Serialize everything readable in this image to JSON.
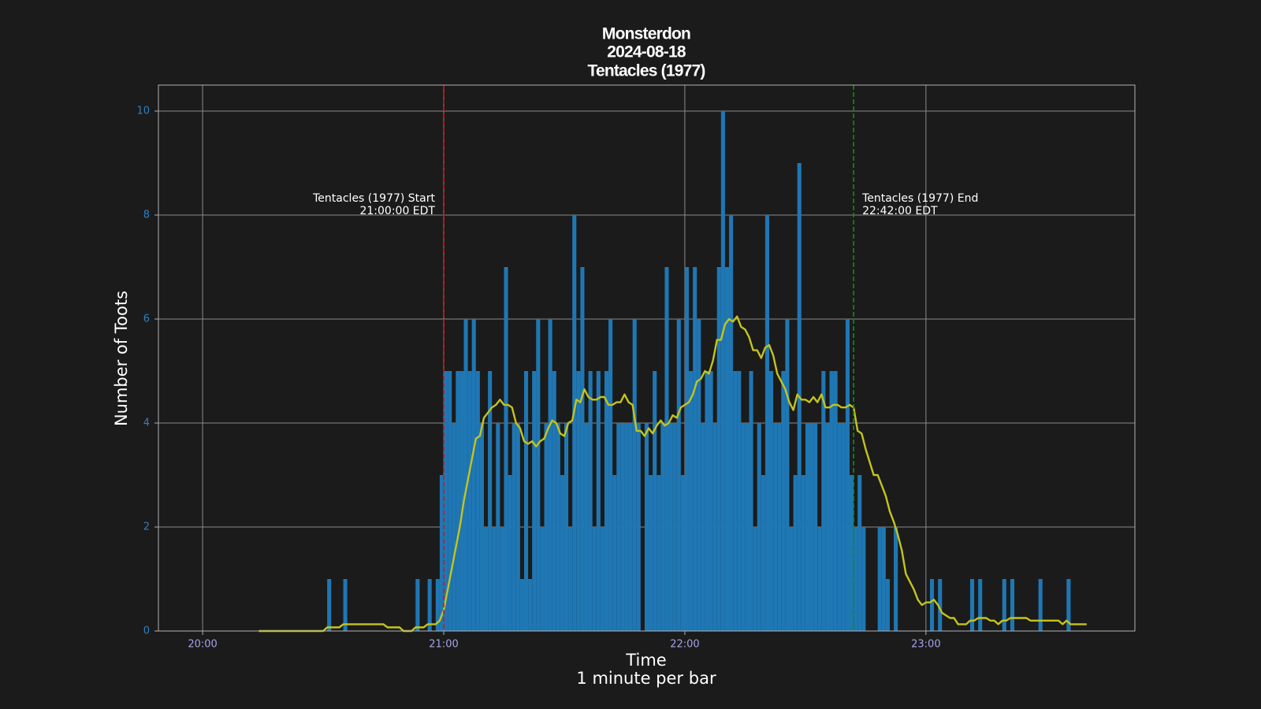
{
  "chart_data": {
    "type": "bar",
    "title": [
      "Monsterdon",
      "2024-08-18",
      "Tentacles (1977)"
    ],
    "xlabel": [
      "Time",
      "1 minute per bar"
    ],
    "ylabel": "Number of Toots",
    "xlim": [
      "19:49",
      "23:52"
    ],
    "xticks": [
      "20:00",
      "21:00",
      "22:00",
      "23:00"
    ],
    "ylim": [
      0,
      10.5
    ],
    "yticks": [
      0,
      2,
      4,
      6,
      8,
      10
    ],
    "grid": true,
    "annotations": [
      {
        "x": "21:00",
        "color": "#e01010",
        "align": "right",
        "lines": [
          "Tentacles (1977) Start",
          "21:00:00 EDT"
        ]
      },
      {
        "x": "22:42",
        "color": "#109010",
        "align": "left",
        "lines": [
          "Tentacles (1977) End",
          "22:42:00 EDT"
        ]
      }
    ],
    "x": [
      "20:14",
      "20:15",
      "20:16",
      "20:17",
      "20:18",
      "20:19",
      "20:20",
      "20:21",
      "20:22",
      "20:23",
      "20:24",
      "20:25",
      "20:26",
      "20:27",
      "20:28",
      "20:29",
      "20:30",
      "20:31",
      "20:32",
      "20:33",
      "20:34",
      "20:35",
      "20:36",
      "20:37",
      "20:38",
      "20:39",
      "20:40",
      "20:41",
      "20:42",
      "20:43",
      "20:44",
      "20:45",
      "20:46",
      "20:47",
      "20:48",
      "20:49",
      "20:50",
      "20:51",
      "20:52",
      "20:53",
      "20:54",
      "20:55",
      "20:56",
      "20:57",
      "20:58",
      "20:59",
      "21:00",
      "21:01",
      "21:02",
      "21:03",
      "21:04",
      "21:05",
      "21:06",
      "21:07",
      "21:08",
      "21:09",
      "21:10",
      "21:11",
      "21:12",
      "21:13",
      "21:14",
      "21:15",
      "21:16",
      "21:17",
      "21:18",
      "21:19",
      "21:20",
      "21:21",
      "21:22",
      "21:23",
      "21:24",
      "21:25",
      "21:26",
      "21:27",
      "21:28",
      "21:29",
      "21:30",
      "21:31",
      "21:32",
      "21:33",
      "21:34",
      "21:35",
      "21:36",
      "21:37",
      "21:38",
      "21:39",
      "21:40",
      "21:41",
      "21:42",
      "21:43",
      "21:44",
      "21:45",
      "21:46",
      "21:47",
      "21:48",
      "21:49",
      "21:50",
      "21:51",
      "21:52",
      "21:53",
      "21:54",
      "21:55",
      "21:56",
      "21:57",
      "21:58",
      "21:59",
      "22:00",
      "22:01",
      "22:02",
      "22:03",
      "22:04",
      "22:05",
      "22:06",
      "22:07",
      "22:08",
      "22:09",
      "22:10",
      "22:11",
      "22:12",
      "22:13",
      "22:14",
      "22:15",
      "22:16",
      "22:17",
      "22:18",
      "22:19",
      "22:20",
      "22:21",
      "22:22",
      "22:23",
      "22:24",
      "22:25",
      "22:26",
      "22:27",
      "22:28",
      "22:29",
      "22:30",
      "22:31",
      "22:32",
      "22:33",
      "22:34",
      "22:35",
      "22:36",
      "22:37",
      "22:38",
      "22:39",
      "22:40",
      "22:41",
      "22:42",
      "22:43",
      "22:44",
      "22:45",
      "22:46",
      "22:47",
      "22:48",
      "22:49",
      "22:50",
      "22:51",
      "22:52",
      "22:53",
      "22:54",
      "22:55",
      "22:56",
      "22:57",
      "22:58",
      "22:59",
      "23:00",
      "23:01",
      "23:02",
      "23:03",
      "23:04",
      "23:05",
      "23:06",
      "23:07",
      "23:08",
      "23:09",
      "23:10",
      "23:11",
      "23:12",
      "23:13",
      "23:14",
      "23:15",
      "23:16",
      "23:17",
      "23:18",
      "23:19",
      "23:20",
      "23:21",
      "23:22",
      "23:23",
      "23:24",
      "23:25",
      "23:26",
      "23:27",
      "23:28",
      "23:29",
      "23:30",
      "23:31",
      "23:32",
      "23:33",
      "23:34",
      "23:35",
      "23:36",
      "23:37",
      "23:38",
      "23:39",
      "23:40"
    ],
    "series": [
      {
        "type": "bar",
        "color": "#1f77b4",
        "values": [
          0,
          0,
          0,
          0,
          0,
          0,
          0,
          0,
          0,
          0,
          0,
          0,
          0,
          0,
          0,
          0,
          0,
          1,
          0,
          0,
          0,
          1,
          0,
          0,
          0,
          0,
          0,
          0,
          0,
          0,
          0,
          0,
          0,
          0,
          0,
          0,
          0,
          0,
          0,
          1,
          0,
          0,
          1,
          0,
          1,
          3,
          5,
          5,
          4,
          5,
          5,
          6,
          5,
          6,
          5,
          4,
          2,
          5,
          2,
          4,
          2,
          7,
          3,
          4,
          4,
          1,
          5,
          1,
          5,
          6,
          2,
          4,
          6,
          5,
          4,
          3,
          4,
          2,
          8,
          5,
          7,
          4,
          5,
          2,
          5,
          2,
          5,
          6,
          3,
          4,
          4,
          4,
          4,
          6,
          4,
          0,
          4,
          3,
          5,
          3,
          4,
          7,
          4,
          4,
          6,
          3,
          7,
          5,
          7,
          6,
          4,
          5,
          5,
          4,
          7,
          10,
          7,
          8,
          5,
          5,
          4,
          4,
          5,
          2,
          4,
          3,
          8,
          5,
          4,
          4,
          5,
          6,
          2,
          3,
          9,
          3,
          4,
          4,
          4,
          2,
          5,
          4,
          5,
          5,
          4,
          4,
          6,
          3,
          2,
          3,
          2,
          0,
          0,
          0,
          2,
          2,
          1,
          0,
          2,
          0,
          0,
          0,
          0,
          0,
          0,
          0,
          0,
          1,
          0,
          1,
          0,
          0,
          0,
          0,
          0,
          0,
          0,
          1,
          0,
          1,
          0,
          0,
          0,
          0,
          0,
          1,
          0,
          1,
          0,
          0,
          0,
          0,
          0,
          0,
          1,
          0,
          0,
          0,
          0,
          0,
          0,
          1,
          0,
          0,
          0,
          0,
          0
        ]
      },
      {
        "type": "line",
        "color": "#c4c41c",
        "values": [
          0,
          0,
          0,
          0,
          0,
          0,
          0,
          0,
          0,
          0,
          0,
          0,
          0,
          0,
          0,
          0,
          0,
          0.07,
          0.07,
          0.07,
          0.07,
          0.13,
          0.13,
          0.13,
          0.13,
          0.13,
          0.13,
          0.13,
          0.13,
          0.13,
          0.13,
          0.13,
          0.07,
          0.07,
          0.07,
          0.07,
          0,
          0,
          0,
          0.07,
          0.07,
          0.07,
          0.13,
          0.13,
          0.13,
          0.2,
          0.4,
          0.8,
          1.2,
          1.6,
          2.0,
          2.5,
          2.9,
          3.3,
          3.7,
          3.75,
          4.1,
          4.2,
          4.3,
          4.35,
          4.45,
          4.35,
          4.35,
          4.3,
          4.0,
          3.9,
          3.65,
          3.6,
          3.65,
          3.55,
          3.65,
          3.7,
          3.9,
          4.05,
          4.0,
          3.8,
          3.75,
          4.0,
          4.05,
          4.45,
          4.4,
          4.65,
          4.5,
          4.45,
          4.45,
          4.5,
          4.5,
          4.35,
          4.35,
          4.4,
          4.4,
          4.55,
          4.4,
          4.35,
          3.85,
          3.85,
          3.75,
          3.9,
          3.8,
          3.95,
          4.05,
          3.95,
          4.0,
          4.15,
          4.1,
          4.3,
          4.35,
          4.4,
          4.55,
          4.8,
          4.85,
          5.0,
          4.95,
          5.2,
          5.6,
          5.6,
          5.9,
          6.0,
          5.95,
          6.05,
          5.85,
          5.8,
          5.65,
          5.4,
          5.4,
          5.25,
          5.45,
          5.5,
          5.3,
          4.95,
          4.8,
          4.65,
          4.4,
          4.25,
          4.55,
          4.45,
          4.45,
          4.4,
          4.5,
          4.4,
          4.55,
          4.3,
          4.3,
          4.35,
          4.35,
          4.3,
          4.3,
          4.35,
          4.3,
          3.85,
          3.8,
          3.5,
          3.25,
          3.0,
          3.0,
          2.8,
          2.6,
          2.3,
          2.1,
          1.85,
          1.55,
          1.1,
          0.95,
          0.8,
          0.6,
          0.5,
          0.55,
          0.55,
          0.6,
          0.5,
          0.35,
          0.3,
          0.25,
          0.25,
          0.13,
          0.13,
          0.13,
          0.2,
          0.2,
          0.25,
          0.25,
          0.25,
          0.2,
          0.2,
          0.13,
          0.2,
          0.2,
          0.25,
          0.25,
          0.25,
          0.25,
          0.25,
          0.2,
          0.2,
          0.2,
          0.2,
          0.2,
          0.2,
          0.2,
          0.2,
          0.13,
          0.2,
          0.13,
          0.13,
          0.13,
          0.13,
          0.13
        ]
      }
    ]
  }
}
